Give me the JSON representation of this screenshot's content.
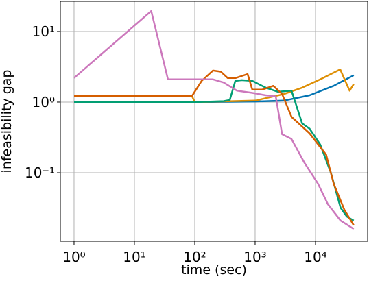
{
  "chart_data": {
    "type": "line",
    "xlabel": "time (sec)",
    "ylabel": "infeasibility gap",
    "xscale": "log",
    "yscale": "log",
    "grid": true,
    "xlim": [
      0.593,
      73100
    ],
    "ylim": [
      0.0107,
      26.7
    ],
    "xticks": [
      {
        "value": 1,
        "label": "10⁰"
      },
      {
        "value": 10,
        "label": "10¹"
      },
      {
        "value": 100,
        "label": "10²"
      },
      {
        "value": 1000,
        "label": "10³"
      },
      {
        "value": 10000,
        "label": "10⁴"
      }
    ],
    "yticks": [
      {
        "value": 0.1,
        "label": "10⁻¹"
      },
      {
        "value": 1,
        "label": "10⁰"
      },
      {
        "value": 10,
        "label": "10¹"
      }
    ],
    "series": [
      {
        "color": "#0173b2",
        "x": [
          1,
          100,
          1000,
          3000,
          8000,
          20000,
          43000
        ],
        "values": [
          1,
          1,
          1.02,
          1.05,
          1.25,
          1.7,
          2.4
        ]
      },
      {
        "color": "#de8f05",
        "x": [
          1,
          90,
          100,
          1000,
          3000,
          6000,
          12000,
          25700,
          36700,
          43000
        ],
        "values": [
          1.22,
          1.22,
          1.0,
          1.05,
          1.3,
          1.6,
          2.1,
          2.9,
          1.45,
          1.8
        ]
      },
      {
        "color": "#029e73",
        "x": [
          1,
          100,
          300,
          380,
          470,
          600,
          900,
          1500,
          2400,
          4000,
          6000,
          8000,
          12000,
          18000,
          26000,
          33000,
          43000
        ],
        "values": [
          1,
          1,
          1.03,
          1.07,
          2.0,
          2.05,
          2.0,
          1.6,
          1.4,
          1.45,
          0.5,
          0.42,
          0.25,
          0.1,
          0.032,
          0.024,
          0.021
        ]
      },
      {
        "color": "#d55e00",
        "x": [
          1,
          90,
          130,
          200,
          270,
          350,
          480,
          750,
          900,
          1300,
          2000,
          2800,
          4000,
          8000,
          15000,
          20000,
          30000,
          43000
        ],
        "values": [
          1.22,
          1.22,
          2.0,
          2.8,
          2.7,
          2.2,
          2.2,
          2.5,
          1.5,
          1.5,
          1.7,
          1.3,
          0.62,
          0.36,
          0.18,
          0.07,
          0.03,
          0.018
        ]
      },
      {
        "color": "#cc78bc",
        "x": [
          1,
          19,
          36,
          100,
          200,
          300,
          500,
          900,
          1500,
          2200,
          2800,
          4000,
          6500,
          11000,
          16000,
          26000,
          43000
        ],
        "values": [
          2.2,
          19.5,
          2.1,
          2.1,
          2.1,
          1.9,
          1.45,
          1.35,
          1.25,
          1.2,
          0.35,
          0.3,
          0.14,
          0.07,
          0.036,
          0.021,
          0.016
        ]
      }
    ]
  }
}
